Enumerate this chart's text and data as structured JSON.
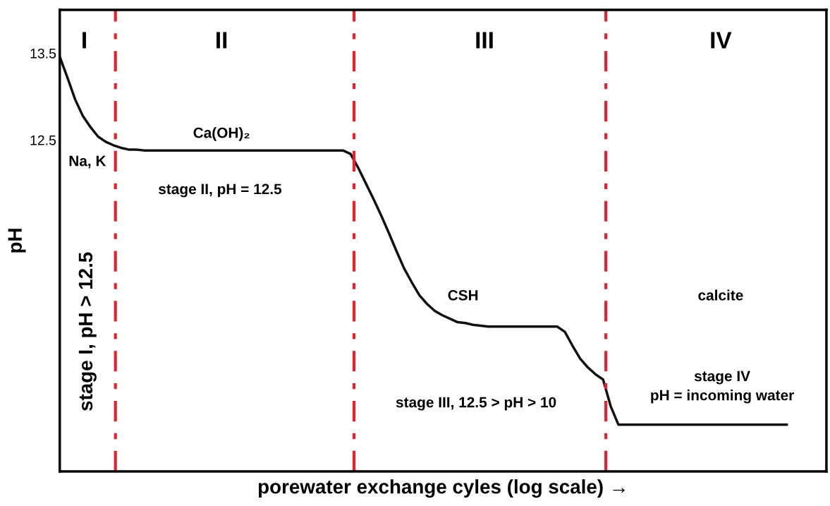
{
  "chart_data": {
    "type": "line",
    "categories": [
      null,
      null,
      null,
      null,
      null,
      null,
      null,
      null,
      null,
      null,
      null,
      null,
      null,
      null,
      null,
      null,
      null,
      null,
      null,
      null,
      null,
      null,
      null,
      null,
      null,
      null,
      null,
      null,
      null,
      null,
      null,
      null,
      null,
      null,
      null,
      null,
      null,
      null,
      null,
      null,
      null,
      null,
      null,
      null,
      null,
      null,
      null,
      null,
      null,
      null,
      null,
      null,
      null,
      null,
      null,
      null,
      null,
      null,
      null,
      null,
      null,
      null,
      null,
      null,
      null,
      null,
      null,
      null,
      null,
      null,
      null,
      null,
      null,
      null,
      null,
      null,
      null,
      null,
      null,
      null,
      null,
      null,
      null,
      null,
      null,
      null,
      null,
      null,
      null,
      null,
      null,
      null,
      null,
      null,
      null,
      null
    ],
    "series": [
      {
        "color": "#111111",
        "values": [
          13.46,
          13.22,
          12.97,
          12.78,
          12.65,
          12.54,
          12.48,
          12.44,
          12.41,
          12.39,
          12.39,
          12.38,
          12.38,
          12.38,
          12.38,
          12.38,
          12.38,
          12.38,
          12.38,
          12.38,
          12.38,
          12.38,
          12.38,
          12.38,
          12.38,
          12.38,
          12.38,
          12.38,
          12.38,
          12.38,
          12.38,
          12.38,
          12.38,
          12.38,
          12.38,
          12.38,
          12.38,
          12.38,
          12.34,
          12.18,
          12.0,
          11.82,
          11.63,
          11.43,
          11.22,
          11.02,
          10.86,
          10.71,
          10.61,
          10.53,
          10.48,
          10.44,
          10.4,
          10.39,
          10.37,
          10.36,
          10.35,
          10.35,
          10.35,
          10.35,
          10.35,
          10.35,
          10.35,
          10.35,
          10.35,
          10.35,
          10.29,
          10.13,
          9.98,
          9.88,
          9.8,
          9.74,
          9.43,
          9.22,
          9.22,
          9.22,
          9.22,
          9.22,
          9.22,
          9.22,
          9.22,
          9.22,
          9.22,
          9.22,
          9.22,
          9.22,
          9.22,
          9.22,
          9.22,
          9.22,
          9.22,
          9.22,
          9.22,
          9.22,
          9.22,
          9.22
        ]
      }
    ],
    "ylabel": "pH",
    "xlabel": "porewater exchange cyles (log scale) →",
    "ylim": [
      8.68,
      14.0
    ],
    "yticks": [
      12.5,
      13.5
    ],
    "tick_labels": "y",
    "grid": false,
    "legend": false,
    "marker": "none",
    "line_style": "solid",
    "annotations": [
      "I",
      "II",
      "III",
      "IV",
      "Na, K",
      "Ca(OH)₂",
      "stage II, pH = 12.5",
      "CSH",
      "stage III, 12.5 > pH > 10",
      "calcite",
      "stage IV\npH = incoming water",
      "stage I, pH > 12.5"
    ]
  }
}
